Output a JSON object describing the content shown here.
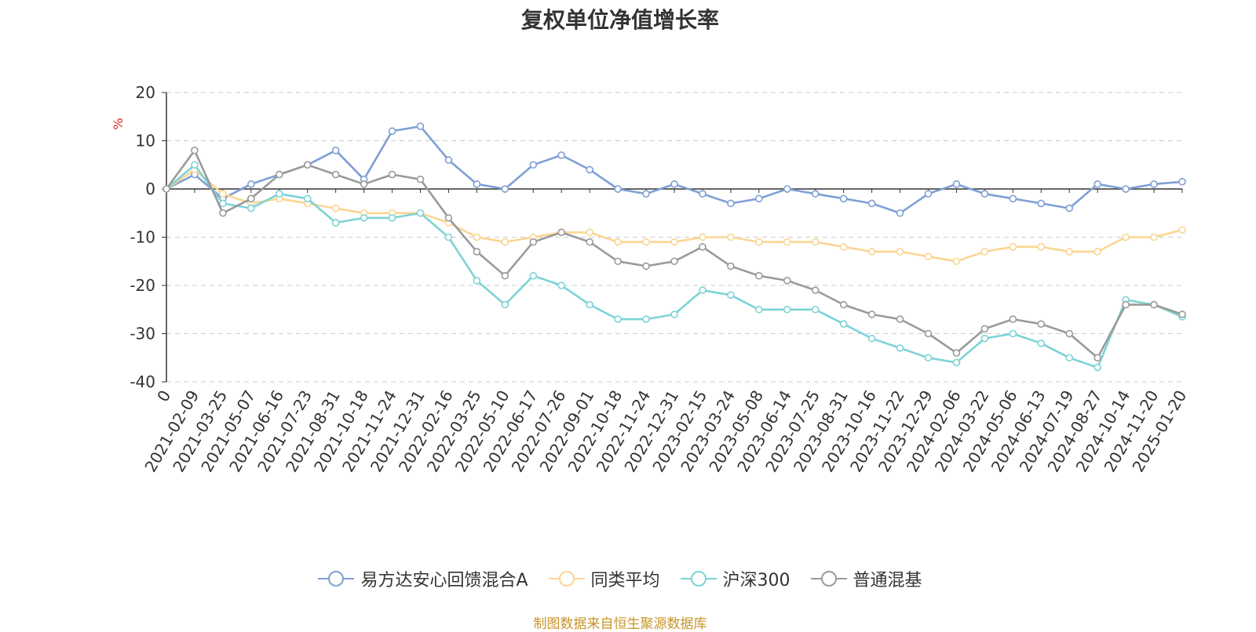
{
  "chart_data": {
    "type": "line",
    "title": "复权单位净值增长率",
    "ylabel": "%",
    "ylim": [
      -40,
      20
    ],
    "yticks": [
      20,
      10,
      0,
      -10,
      -20,
      -30,
      -40
    ],
    "grid": true,
    "legend_position": "bottom-center",
    "x_tick_labels": [
      "0",
      "2021-02-09",
      "2021-03-25",
      "2021-05-07",
      "2021-06-16",
      "2021-07-23",
      "2021-08-31",
      "2021-10-18",
      "2021-11-24",
      "2021-12-31",
      "2022-02-16",
      "2022-03-25",
      "2022-05-10",
      "2022-06-17",
      "2022-07-26",
      "2022-09-01",
      "2022-10-18",
      "2022-11-24",
      "2022-12-31",
      "2023-02-15",
      "2023-03-24",
      "2023-05-08",
      "2023-06-14",
      "2023-07-25",
      "2023-08-31",
      "2023-10-16",
      "2023-11-22",
      "2023-12-29",
      "2024-02-06",
      "2024-03-22",
      "2024-05-06",
      "2024-06-13",
      "2024-07-19",
      "2024-08-27",
      "2024-10-14",
      "2024-11-20",
      "2025-01-20"
    ],
    "series": [
      {
        "name": "易方达安心回馈混合A",
        "color": "#7f9fd5",
        "values": [
          0,
          3,
          -2,
          1,
          3,
          5,
          8,
          2,
          12,
          13,
          6,
          1,
          0,
          5,
          7,
          4,
          0,
          -1,
          1,
          -1,
          -3,
          -2,
          0,
          -1,
          -2,
          -3,
          -5,
          -1,
          1,
          -1,
          -2,
          -3,
          -4,
          1,
          0,
          1,
          1.5
        ]
      },
      {
        "name": "同类平均",
        "color": "#fbd592",
        "values": [
          0,
          4,
          -1,
          -3,
          -2,
          -3,
          -4,
          -5,
          -5,
          -5,
          -7,
          -10,
          -11,
          -10,
          -9,
          -9,
          -11,
          -11,
          -11,
          -10,
          -10,
          -11,
          -11,
          -11,
          -12,
          -13,
          -13,
          -14,
          -15,
          -13,
          -12,
          -12,
          -13,
          -13,
          -10,
          -10,
          -8.5
        ]
      },
      {
        "name": "沪深300",
        "color": "#7dd3d6",
        "values": [
          0,
          5,
          -3,
          -4,
          -1,
          -2,
          -7,
          -6,
          -6,
          -5,
          -10,
          -19,
          -24,
          -18,
          -20,
          -24,
          -27,
          -27,
          -26,
          -21,
          -22,
          -25,
          -25,
          -25,
          -28,
          -31,
          -33,
          -35,
          -36,
          -31,
          -30,
          -32,
          -35,
          -37,
          -23,
          -24,
          -26.5
        ]
      },
      {
        "name": "普通混基",
        "color": "#9a9a9a",
        "values": [
          0,
          8,
          -5,
          -2,
          3,
          5,
          3,
          1,
          3,
          2,
          -6,
          -13,
          -18,
          -11,
          -9,
          -11,
          -15,
          -16,
          -15,
          -12,
          -16,
          -18,
          -19,
          -21,
          -24,
          -26,
          -27,
          -30,
          -34,
          -29,
          -27,
          -28,
          -30,
          -35,
          -24,
          -24,
          -26
        ]
      }
    ]
  },
  "page": {
    "title": "复权单位净值增长率",
    "source_note": "制图数据来自恒生聚源数据库",
    "source_color": "#c8942b"
  }
}
